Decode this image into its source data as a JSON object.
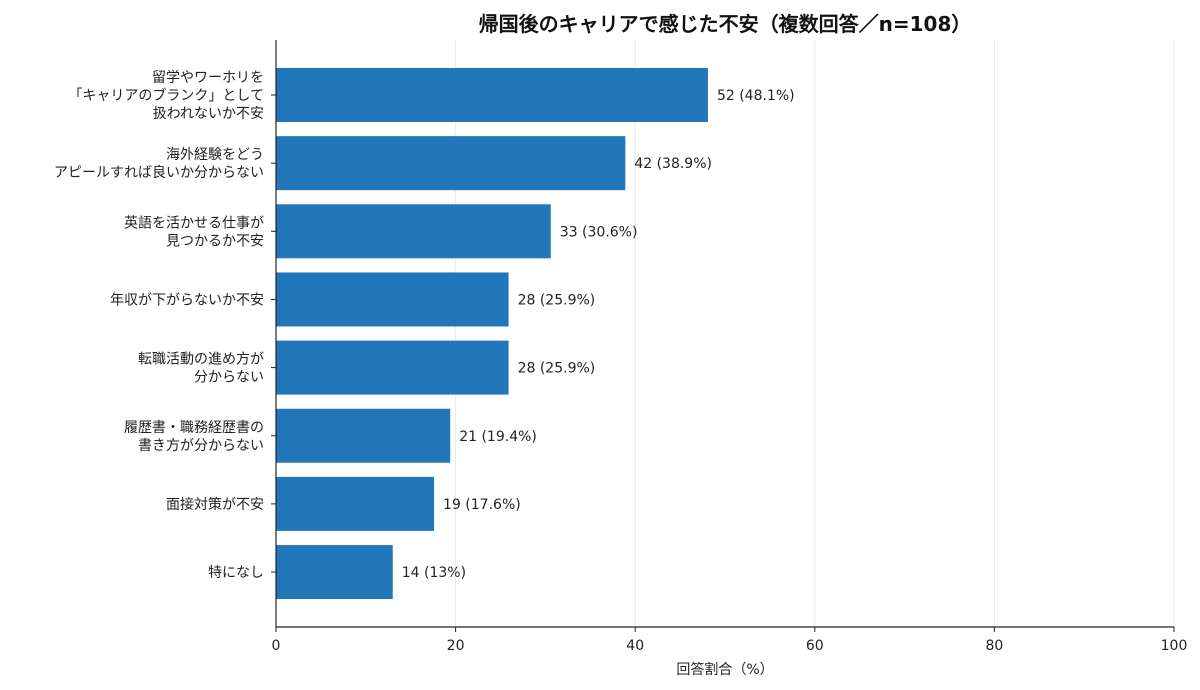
{
  "chart_data": {
    "type": "bar",
    "orientation": "horizontal",
    "title": "帰国後のキャリアで感じた不安（複数回答／n=108）",
    "xlabel": "回答割合（%）",
    "ylabel": "",
    "xlim": [
      0,
      100
    ],
    "xticks": [
      "0",
      "20",
      "40",
      "60",
      "80",
      "100"
    ],
    "grid": "vertical",
    "bar_color": "#2277bb",
    "categories": [
      [
        "留学やワーホリを",
        "「キャリアのブランク」として",
        "扱われないか不安"
      ],
      [
        "海外経験をどう",
        "アピールすれば良いか分からない"
      ],
      [
        "英語を活かせる仕事が",
        "見つかるか不安"
      ],
      [
        "年収が下がらないか不安"
      ],
      [
        "転職活動の進め方が",
        "分からない"
      ],
      [
        "履歴書・職務経歴書の",
        "書き方が分からない"
      ],
      [
        "面接対策が不安"
      ],
      [
        "特になし"
      ]
    ],
    "counts": [
      52,
      42,
      33,
      28,
      28,
      21,
      19,
      14
    ],
    "values": [
      48.1,
      38.9,
      30.6,
      25.9,
      25.9,
      19.4,
      17.6,
      13.0
    ],
    "data_labels": [
      "52 (48.1%)",
      "42 (38.9%)",
      "33 (30.6%)",
      "28 (25.9%)",
      "28 (25.9%)",
      "21 (19.4%)",
      "19 (17.6%)",
      "14 (13%)"
    ]
  }
}
